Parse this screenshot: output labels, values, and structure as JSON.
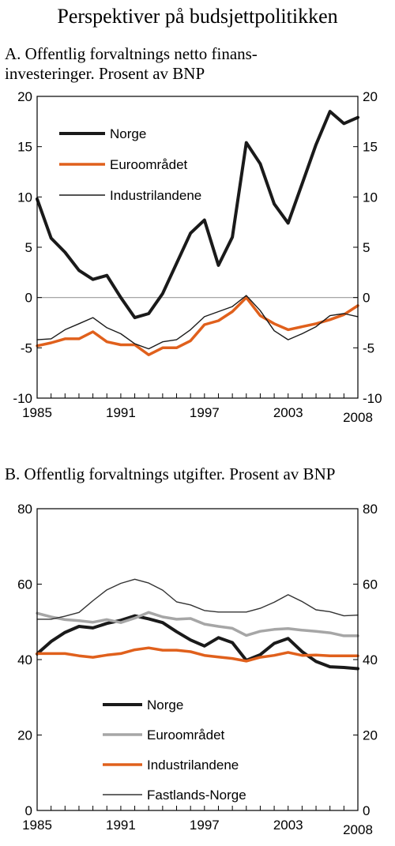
{
  "title": "Perspektiver på budsjettpolitikken",
  "colors": {
    "norge": "#1a1a1a",
    "euro": "#e0601c",
    "industri": "#1a1a1a",
    "euro_b": "#a6a6a6",
    "industri_b": "#e0601c",
    "fastland": "#333333"
  },
  "chart_data": [
    {
      "type": "line",
      "title": "A.  Offentlig forvaltnings netto finans-investeringer. Prosent av BNP",
      "title_line1": "A.  Offentlig forvaltnings netto finans-",
      "title_line2": "investeringer. Prosent av BNP",
      "x": [
        1985,
        1986,
        1987,
        1988,
        1989,
        1990,
        1991,
        1992,
        1993,
        1994,
        1995,
        1996,
        1997,
        1998,
        1999,
        2000,
        2001,
        2002,
        2003,
        2004,
        2005,
        2006,
        2007,
        2008
      ],
      "x_tick_labels": [
        "1985",
        "1991",
        "1997",
        "2003",
        "2008"
      ],
      "x_tick_values": [
        1985,
        1991,
        1997,
        2003,
        2008
      ],
      "xlim": [
        1985,
        2008
      ],
      "ylim": [
        -10,
        20
      ],
      "y_ticks": [
        -10,
        -5,
        0,
        5,
        10,
        15,
        20
      ],
      "y_tick_labels": [
        "-10",
        "-5",
        "0",
        "5",
        "10",
        "15",
        "20"
      ],
      "zero_line": true,
      "legend_position": "top-left",
      "series": [
        {
          "name": "Norge",
          "color": "#1a1a1a",
          "width": 4,
          "values": [
            9.8,
            5.9,
            4.5,
            2.7,
            1.8,
            2.2,
            0,
            -2,
            -1.6,
            0.4,
            3.4,
            6.4,
            7.7,
            3.2,
            6,
            15.4,
            13.3,
            9.3,
            7.4,
            11.3,
            15.2,
            18.5,
            17.3,
            17.9
          ]
        },
        {
          "name": "Euroområdet",
          "color": "#e0601c",
          "width": 3.5,
          "values": [
            -4.8,
            -4.5,
            -4.1,
            -4.1,
            -3.4,
            -4.4,
            -4.7,
            -4.7,
            -5.7,
            -5,
            -5,
            -4.3,
            -2.7,
            -2.3,
            -1.4,
            0,
            -1.8,
            -2.6,
            -3.2,
            -2.9,
            -2.6,
            -2.2,
            -1.7,
            -0.8
          ]
        },
        {
          "name": "Industrilandene",
          "color": "#1a1a1a",
          "width": 1.4,
          "values": [
            -4.2,
            -4.1,
            -3.2,
            -2.6,
            -2,
            -3,
            -3.6,
            -4.6,
            -5.1,
            -4.4,
            -4.2,
            -3.2,
            -1.9,
            -1.4,
            -0.9,
            0.2,
            -1.3,
            -3.3,
            -4.2,
            -3.6,
            -2.9,
            -1.8,
            -1.6,
            -1.9
          ]
        }
      ]
    },
    {
      "type": "line",
      "title": "B.  Offentlig forvaltnings utgifter. Prosent av BNP",
      "x": [
        1985,
        1986,
        1987,
        1988,
        1989,
        1990,
        1991,
        1992,
        1993,
        1994,
        1995,
        1996,
        1997,
        1998,
        1999,
        2000,
        2001,
        2002,
        2003,
        2004,
        2005,
        2006,
        2007,
        2008
      ],
      "x_tick_labels": [
        "1985",
        "1991",
        "1997",
        "2003",
        "2008"
      ],
      "x_tick_values": [
        1985,
        1991,
        1997,
        2003,
        2008
      ],
      "xlim": [
        1985,
        2008
      ],
      "ylim": [
        0,
        80
      ],
      "y_ticks": [
        0,
        20,
        40,
        60,
        80
      ],
      "y_tick_labels": [
        "0",
        "20",
        "40",
        "60",
        "80"
      ],
      "zero_line": false,
      "legend_position": "bottom-left",
      "series": [
        {
          "name": "Norge",
          "color": "#1a1a1a",
          "width": 4,
          "values": [
            41.5,
            44.8,
            47.2,
            48.8,
            48.4,
            49.6,
            50.4,
            51.6,
            50.8,
            49.8,
            47.4,
            45.2,
            43.6,
            45.8,
            44.5,
            39.8,
            41.3,
            44.3,
            45.6,
            42.1,
            39.5,
            38.1,
            37.9,
            37.6
          ]
        },
        {
          "name": "Euroområdet",
          "color": "#a6a6a6",
          "width": 3.5,
          "values": [
            52.3,
            51.3,
            50.6,
            50.3,
            49.9,
            50.6,
            49.8,
            51,
            52.5,
            51.3,
            50.7,
            50.9,
            49.4,
            48.8,
            48.3,
            46.4,
            47.5,
            48,
            48.2,
            47.8,
            47.5,
            47.1,
            46.3,
            46.3
          ]
        },
        {
          "name": "Industrilandene",
          "color": "#e0601c",
          "width": 3.5,
          "values": [
            41.6,
            41.6,
            41.6,
            41,
            40.6,
            41.2,
            41.6,
            42.6,
            43.1,
            42.5,
            42.5,
            42.1,
            41.1,
            40.7,
            40.3,
            39.6,
            40.6,
            41.1,
            41.9,
            41.1,
            41.2,
            41,
            41,
            41
          ]
        },
        {
          "name": "Fastlands-Norge",
          "color": "#333333",
          "width": 1.4,
          "values": [
            50.7,
            50.7,
            51.5,
            52.5,
            55.6,
            58.5,
            60.2,
            61.3,
            60.3,
            58.4,
            55.3,
            54.5,
            53,
            52.6,
            52.6,
            52.6,
            53.6,
            55.2,
            57.2,
            55.4,
            53.2,
            52.7,
            51.6,
            51.8
          ]
        }
      ]
    }
  ]
}
